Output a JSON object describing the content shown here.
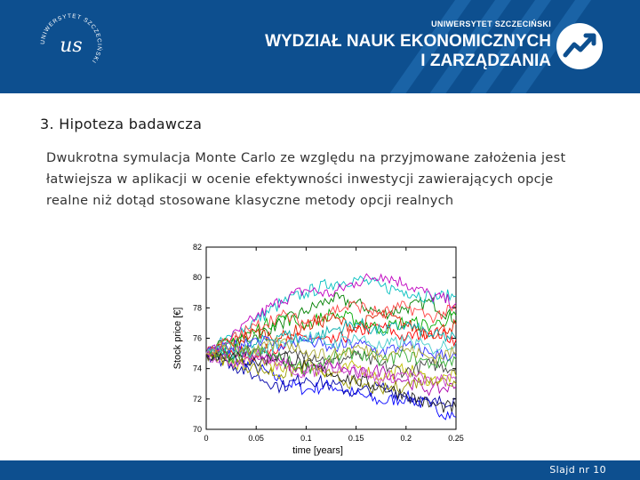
{
  "header": {
    "logo_ring_text": "UNIWERSYTET SZCZECIŃSKI",
    "logo_monogram": "us",
    "university": "UNIWERSYTET SZCZECIŃSKI",
    "faculty_line1": "WYDZIAŁ NAUK EKONOMICZNYCH",
    "faculty_line2": "I ZARZĄDZANIA",
    "colors": {
      "header_bg": "#0d4f8f",
      "stripe": "#1a63a6"
    }
  },
  "slide": {
    "title": "3. Hipoteza badawcza",
    "body": "Dwukrotna symulacja Monte Carlo ze względu na przyjmowane założenia jest łatwiejsza w aplikacji w ocenie efektywności inwestycji zawierających opcje realne niż dotąd stosowane klasyczne metody opcji realnych"
  },
  "chart_data": {
    "type": "line",
    "xlabel": "time [years]",
    "ylabel": "Stock price [€]",
    "xlim": [
      0,
      0.25
    ],
    "ylim": [
      70,
      82
    ],
    "x_ticks": [
      "0",
      "0.05",
      "0.1",
      "0.15",
      "0.2",
      "0.25"
    ],
    "y_ticks": [
      "70",
      "72",
      "74",
      "76",
      "78",
      "80",
      "82"
    ],
    "grid": false,
    "start_value": 75,
    "x": [
      0,
      0.025,
      0.05,
      0.075,
      0.1,
      0.125,
      0.15,
      0.175,
      0.2,
      0.225,
      0.25
    ],
    "series": [
      {
        "color": "#0000ff",
        "values": [
          75,
          74.6,
          74.1,
          73.2,
          72.6,
          72.9,
          72.3,
          71.8,
          72.1,
          71.5,
          70.8
        ]
      },
      {
        "color": "#008000",
        "values": [
          75,
          75.6,
          76.2,
          77.0,
          77.8,
          78.6,
          78.3,
          77.6,
          78.0,
          78.4,
          77.2
        ]
      },
      {
        "color": "#ff0000",
        "values": [
          75,
          75.2,
          74.9,
          75.6,
          76.1,
          75.7,
          76.4,
          76.8,
          76.0,
          76.5,
          75.9
        ]
      },
      {
        "color": "#00bfbf",
        "values": [
          75,
          76.1,
          77.2,
          78.3,
          79.0,
          79.6,
          79.9,
          79.4,
          79.1,
          78.7,
          78.8
        ]
      },
      {
        "color": "#bf00bf",
        "values": [
          75,
          76.0,
          77.4,
          78.5,
          79.2,
          78.9,
          79.7,
          80.2,
          79.6,
          78.8,
          78.3
        ]
      },
      {
        "color": "#bfbf00",
        "values": [
          75,
          74.2,
          74.8,
          73.9,
          74.5,
          73.6,
          74.2,
          73.4,
          74.0,
          73.2,
          73.5
        ]
      },
      {
        "color": "#404040",
        "values": [
          75,
          74.6,
          75.3,
          74.7,
          75.1,
          74.4,
          74.9,
          74.2,
          73.8,
          74.3,
          74.0
        ]
      },
      {
        "color": "#0000aa",
        "values": [
          75,
          74.3,
          73.5,
          72.8,
          73.4,
          72.9,
          72.4,
          72.8,
          72.2,
          71.7,
          72.0
        ]
      },
      {
        "color": "#00aa00",
        "values": [
          75,
          75.8,
          76.5,
          77.4,
          76.9,
          77.6,
          77.2,
          76.6,
          77.1,
          76.8,
          77.5
        ]
      },
      {
        "color": "#dd2200",
        "values": [
          75,
          75.7,
          76.4,
          76.0,
          76.8,
          77.3,
          76.7,
          77.6,
          76.9,
          76.3,
          76.9
        ]
      },
      {
        "color": "#00aaaa",
        "values": [
          75,
          74.9,
          75.6,
          76.3,
          75.8,
          76.5,
          77.0,
          76.4,
          76.9,
          76.2,
          76.0
        ]
      },
      {
        "color": "#aa00aa",
        "values": [
          75,
          75.3,
          74.8,
          74.4,
          73.8,
          74.3,
          73.6,
          73.9,
          73.2,
          72.6,
          72.8
        ]
      },
      {
        "color": "#999900",
        "values": [
          75,
          74.5,
          74.0,
          73.6,
          74.1,
          73.5,
          73.0,
          72.6,
          72.9,
          73.4,
          73.0
        ]
      },
      {
        "color": "#222222",
        "values": [
          75,
          74.8,
          74.4,
          74.9,
          74.2,
          73.7,
          73.2,
          72.8,
          72.3,
          71.6,
          71.4
        ]
      },
      {
        "color": "#3333ff",
        "values": [
          75,
          75.4,
          76.0,
          75.5,
          75.9,
          75.3,
          75.7,
          75.1,
          75.5,
          75.0,
          74.8
        ]
      },
      {
        "color": "#33aa33",
        "values": [
          75,
          74.7,
          75.2,
          74.6,
          74.0,
          74.6,
          75.1,
          74.5,
          74.9,
          74.3,
          74.6
        ]
      },
      {
        "color": "#ff4444",
        "values": [
          75,
          75.9,
          76.8,
          77.5,
          77.0,
          77.8,
          78.2,
          77.6,
          78.1,
          77.4,
          77.9
        ]
      },
      {
        "color": "#44cccc",
        "values": [
          75,
          75.5,
          75.0,
          75.7,
          76.2,
          75.6,
          76.1,
          75.4,
          75.9,
          75.3,
          75.7
        ]
      },
      {
        "color": "#cc44cc",
        "values": [
          75,
          74.4,
          74.9,
          74.2,
          73.7,
          74.2,
          73.9,
          73.3,
          73.7,
          73.1,
          73.3
        ]
      },
      {
        "color": "#aaaa33",
        "values": [
          75,
          75.6,
          75.1,
          75.8,
          75.2,
          74.8,
          75.4,
          74.9,
          75.3,
          74.7,
          75.1
        ]
      }
    ]
  },
  "footer": {
    "slide_number": "Slajd nr 10",
    "color": "#0d4f8f"
  }
}
